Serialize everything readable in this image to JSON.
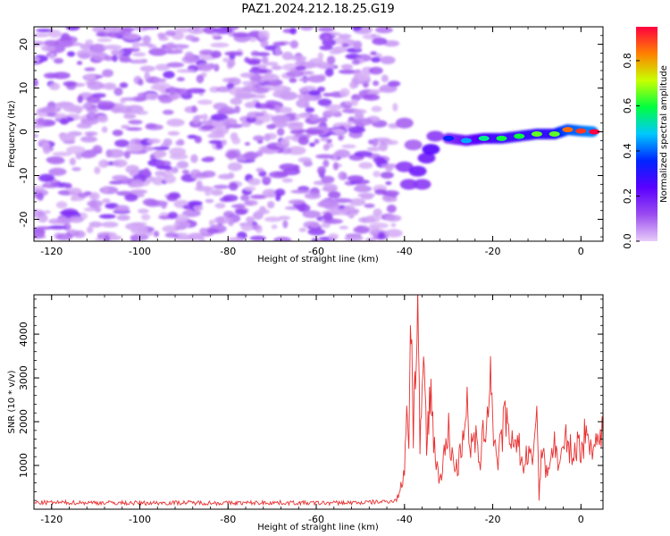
{
  "title": "PAZ1.2024.212.18.25.G19",
  "chart_data": [
    {
      "type": "heatmap",
      "title": "PAZ1.2024.212.18.25.G19",
      "xlabel": "Height of straight line (km)",
      "ylabel": "Frequency (Hz)",
      "xlim": [
        -124,
        5
      ],
      "ylim": [
        -25,
        24
      ],
      "x_ticks": [
        -120,
        -100,
        -80,
        -60,
        -40,
        -20,
        0
      ],
      "y_ticks": [
        -20,
        -10,
        0,
        10,
        20
      ],
      "colorbar": {
        "label": "Normalized spectral amplitude",
        "range": [
          0,
          0.95
        ],
        "ticks": [
          0.0,
          0.2,
          0.4,
          0.6,
          0.8
        ],
        "colormap": [
          "#e8ccf8",
          "#9a4cf0",
          "#5a00ff",
          "#0024ff",
          "#00c8ff",
          "#00ff40",
          "#c8ff00",
          "#ff8000",
          "#ff0040"
        ]
      },
      "features": [
        {
          "description_x_range": [
            -124,
            -43
          ],
          "y_range": [
            -25,
            24
          ],
          "amplitude": "low (0.0-0.15), scattered noise"
        },
        {
          "x_range": [
            -45,
            -32
          ],
          "y_range": [
            -14,
            3
          ],
          "amplitude": "low-mid, hook shaped"
        },
        {
          "x_range": [
            -31,
            5
          ],
          "y_center_start": -2,
          "y_center_end": 0.5,
          "amplitude": "rising 0.35 to 0.95"
        }
      ],
      "ridge": [
        {
          "x": -30,
          "y": -1.5,
          "amp": 0.35
        },
        {
          "x": -26,
          "y": -2.0,
          "amp": 0.45
        },
        {
          "x": -22,
          "y": -1.5,
          "amp": 0.55
        },
        {
          "x": -18,
          "y": -1.5,
          "amp": 0.6
        },
        {
          "x": -14,
          "y": -1.0,
          "amp": 0.6
        },
        {
          "x": -10,
          "y": -0.5,
          "amp": 0.65
        },
        {
          "x": -6,
          "y": -0.5,
          "amp": 0.65
        },
        {
          "x": -3,
          "y": 0.5,
          "amp": 0.85
        },
        {
          "x": 0,
          "y": 0.2,
          "amp": 0.9
        },
        {
          "x": 3,
          "y": 0.0,
          "amp": 0.95
        }
      ]
    },
    {
      "type": "line",
      "xlabel": "Height of straight line (km)",
      "ylabel": "SNR (10 * v/v)",
      "xlim": [
        -124,
        5
      ],
      "ylim": [
        0,
        4900
      ],
      "x_ticks": [
        -120,
        -100,
        -80,
        -60,
        -40,
        -20,
        0
      ],
      "y_ticks": [
        1000,
        2000,
        3000,
        4000
      ],
      "color": "#e83030",
      "series": [
        {
          "values_description": "noise floor ~100-200 from -124 to -42 km, sharp rise with strong spikes from -40 to -30 km, moderate oscillation ~1000-2500 to -10 km, then ~1200-1700",
          "x": [
            -124,
            -110,
            -100,
            -90,
            -80,
            -70,
            -60,
            -50,
            -45,
            -42,
            -41,
            -40,
            -39.5,
            -39,
            -38.5,
            -38,
            -37.5,
            -37,
            -36.5,
            -36,
            -35.5,
            -35,
            -34.5,
            -34,
            -33,
            -32,
            -31,
            -30,
            -29,
            -28,
            -27,
            -26,
            -25,
            -24,
            -23,
            -22,
            -21,
            -20.5,
            -20,
            -19,
            -18,
            -17,
            -16,
            -15,
            -14,
            -13,
            -12,
            -11,
            -10,
            -9.5,
            -9,
            -8,
            -7,
            -6,
            -5,
            -4,
            -3,
            -2,
            -1,
            0,
            1,
            2,
            3,
            4,
            5
          ],
          "y": [
            150,
            150,
            140,
            150,
            140,
            150,
            140,
            150,
            170,
            200,
            400,
            900,
            2600,
            1500,
            4850,
            1800,
            3200,
            4750,
            1400,
            2200,
            3600,
            1300,
            2100,
            2800,
            1100,
            700,
            1200,
            1800,
            1100,
            900,
            1500,
            2500,
            1300,
            1700,
            900,
            1800,
            2300,
            3450,
            2000,
            1000,
            1600,
            2200,
            1200,
            1800,
            1400,
            900,
            1300,
            1000,
            2600,
            200,
            1400,
            900,
            1100,
            1500,
            1000,
            1300,
            1700,
            1100,
            1500,
            1400,
            1700,
            1500,
            1600,
            1500,
            1700
          ]
        }
      ]
    }
  ]
}
